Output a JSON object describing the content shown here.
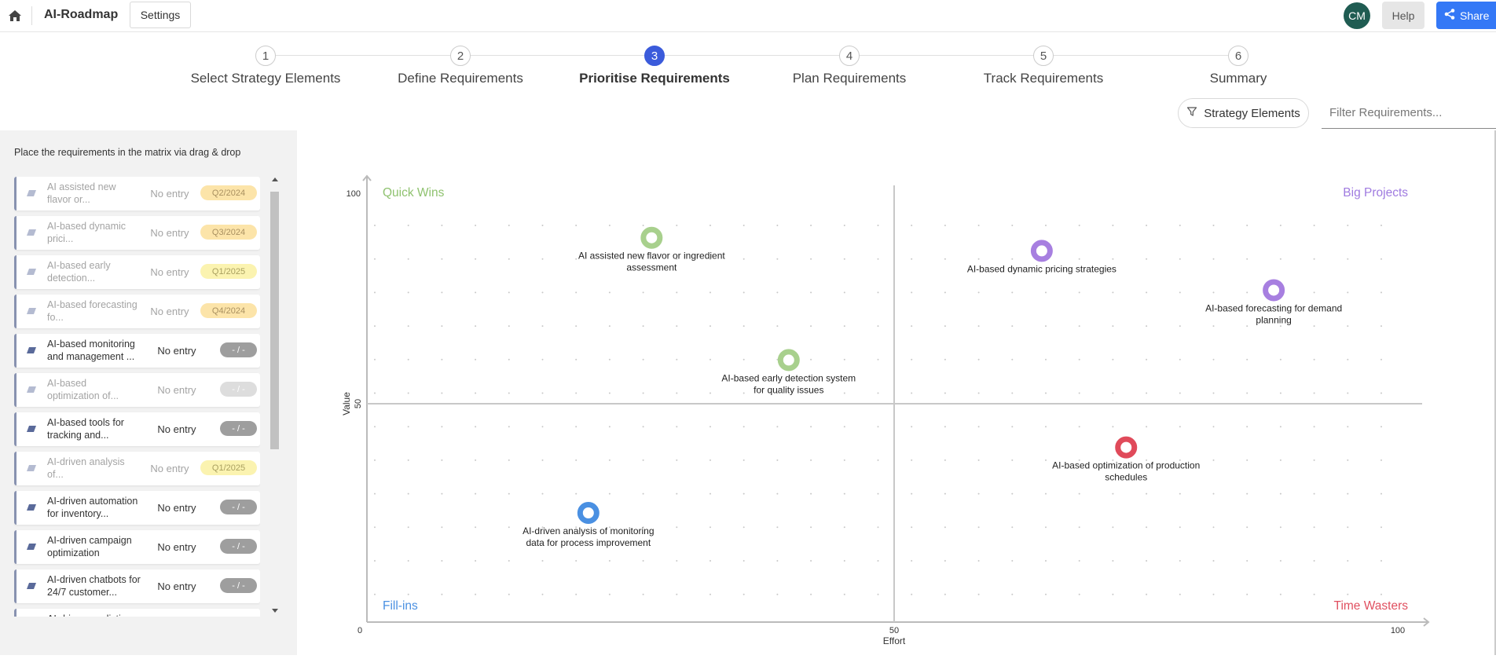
{
  "header": {
    "app_title": "AI-Roadmap",
    "settings_label": "Settings",
    "avatar_initials": "CM",
    "help_label": "Help",
    "share_label": "Share",
    "share_color": "#3478f6",
    "avatar_color": "#1f5c52"
  },
  "stepper": {
    "steps": [
      {
        "number": "1",
        "label": "Select Strategy Elements"
      },
      {
        "number": "2",
        "label": "Define Requirements"
      },
      {
        "number": "3",
        "label": "Prioritise Requirements",
        "active": true
      },
      {
        "number": "4",
        "label": "Plan Requirements"
      },
      {
        "number": "5",
        "label": "Track Requirements"
      },
      {
        "number": "6",
        "label": "Summary"
      }
    ],
    "active_color": "#3b5bdb"
  },
  "filters": {
    "strategy_label": "Strategy Elements",
    "filter_placeholder": "Filter Requirements..."
  },
  "left_panel": {
    "instruction": "Place the requirements in the matrix via drag & drop",
    "requirements": [
      {
        "label": "AI assisted new flavor or...",
        "entry": "No entry",
        "badge": "Q2/2024",
        "badge_style": "orange",
        "dim": true
      },
      {
        "label": "AI-based dynamic prici...",
        "entry": "No entry",
        "badge": "Q3/2024",
        "badge_style": "orange",
        "dim": true
      },
      {
        "label": "AI-based early detection...",
        "entry": "No entry",
        "badge": "Q1/2025",
        "badge_style": "yellow",
        "dim": true
      },
      {
        "label": "AI-based forecasting fo...",
        "entry": "No entry",
        "badge": "Q4/2024",
        "badge_style": "orange",
        "dim": true
      },
      {
        "label": "AI-based monitoring and management ...",
        "entry": "No entry",
        "badge": "- / -",
        "badge_style": "gray",
        "dim": false
      },
      {
        "label": "AI-based optimization of...",
        "entry": "No entry",
        "badge": "- / -",
        "badge_style": "gray",
        "dim": true
      },
      {
        "label": "AI-based tools for tracking and...",
        "entry": "No entry",
        "badge": "- / -",
        "badge_style": "gray",
        "dim": false
      },
      {
        "label": "AI-driven analysis of...",
        "entry": "No entry",
        "badge": "Q1/2025",
        "badge_style": "yellow",
        "dim": true
      },
      {
        "label": "AI-driven automation for inventory...",
        "entry": "No entry",
        "badge": "- / -",
        "badge_style": "gray",
        "dim": false
      },
      {
        "label": "AI-driven campaign optimization",
        "entry": "No entry",
        "badge": "- / -",
        "badge_style": "gray",
        "dim": false
      },
      {
        "label": "AI-driven chatbots for 24/7 customer...",
        "entry": "No entry",
        "badge": "- / -",
        "badge_style": "gray",
        "dim": false
      },
      {
        "label": "AI-driven predictive...",
        "entry": "",
        "badge": "",
        "badge_style": "gray",
        "dim": false
      }
    ]
  },
  "chart_data": {
    "type": "scatter",
    "xlabel": "Effort",
    "ylabel": "Value",
    "xlim": [
      0,
      100
    ],
    "ylim": [
      0,
      100
    ],
    "x_ticks": [
      "0",
      "50",
      "100"
    ],
    "y_ticks": [
      "100",
      "50"
    ],
    "grid": "dotted",
    "quadrants": [
      {
        "name": "Quick Wins",
        "position": "top-left",
        "color": "#8fc26f"
      },
      {
        "name": "Big Projects",
        "position": "top-right",
        "color": "#9f7ae0"
      },
      {
        "name": "Fill-ins",
        "position": "bottom-left",
        "color": "#4a90e2"
      },
      {
        "name": "Time Wasters",
        "position": "bottom-right",
        "color": "#e05060"
      }
    ],
    "points": [
      {
        "label": "AI assisted new flavor or ingredient assessment",
        "lines": [
          "AI assisted new flavor or ingredient",
          "assessment"
        ],
        "x": 27,
        "y": 88,
        "color": "#a8d08d"
      },
      {
        "label": "AI-based dynamic pricing strategies",
        "lines": [
          "AI-based dynamic pricing strategies"
        ],
        "x": 64,
        "y": 85,
        "color": "#a77fe0"
      },
      {
        "label": "AI-based forecasting for demand planning",
        "lines": [
          "AI-based forecasting for demand",
          "planning"
        ],
        "x": 86,
        "y": 76,
        "color": "#a77fe0"
      },
      {
        "label": "AI-based early detection system for quality issues",
        "lines": [
          "AI-based early detection system",
          "for quality issues"
        ],
        "x": 40,
        "y": 60,
        "color": "#a8d08d"
      },
      {
        "label": "AI-based optimization of production schedules",
        "lines": [
          "AI-based optimization of production",
          "schedules"
        ],
        "x": 72,
        "y": 40,
        "color": "#e04a5a"
      },
      {
        "label": "AI-driven analysis of monitoring data for process improvement",
        "lines": [
          "AI-driven analysis of monitoring",
          "data for process improvement"
        ],
        "x": 21,
        "y": 25,
        "color": "#4a90e2"
      }
    ]
  }
}
